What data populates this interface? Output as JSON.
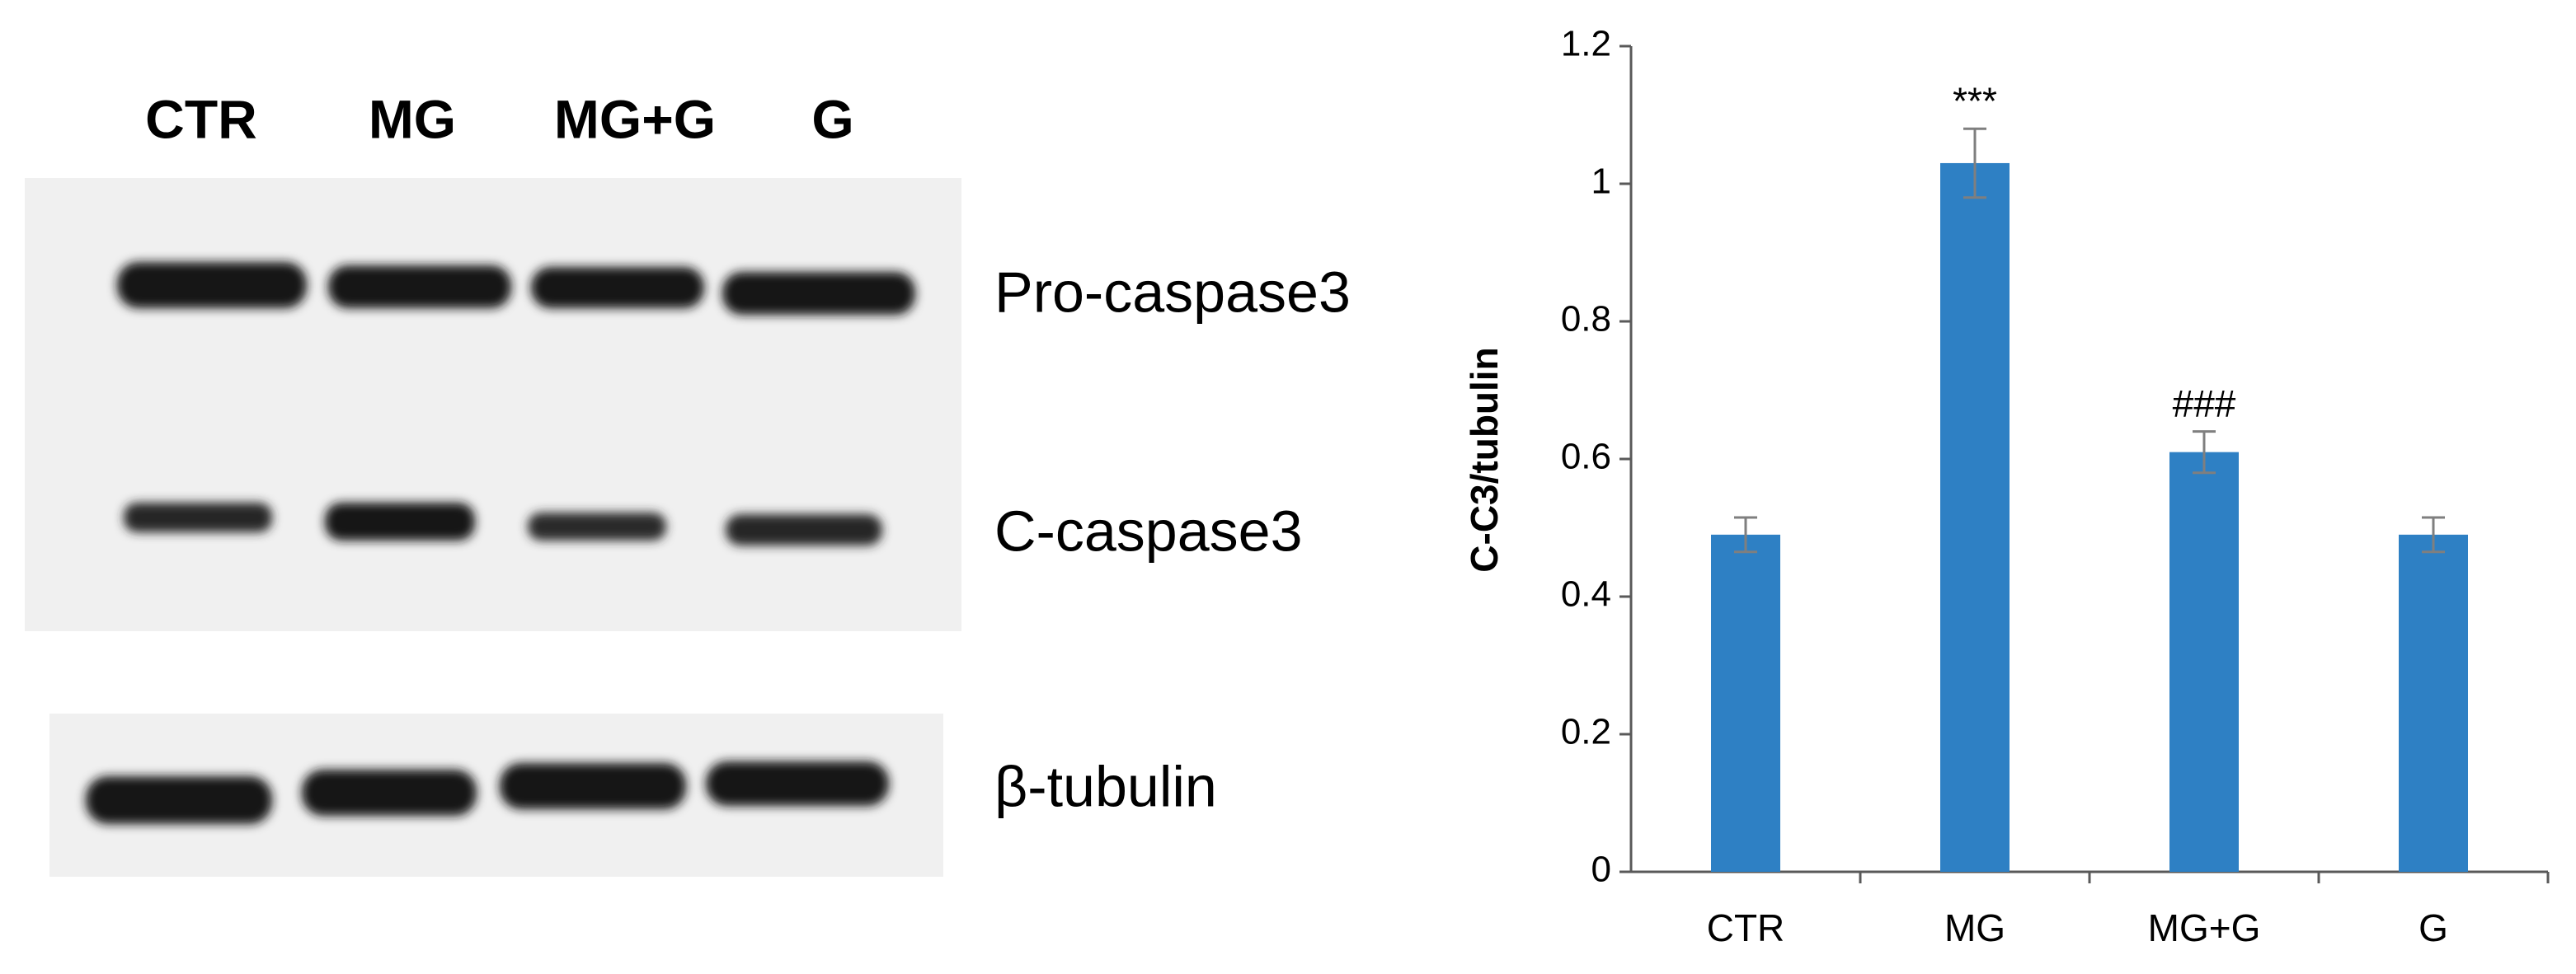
{
  "blot": {
    "lanes": [
      "CTR",
      "MG",
      "MG+G",
      "G"
    ],
    "bands": [
      "Pro-caspase3",
      "C-caspase3",
      "β-tubulin"
    ]
  },
  "chart_data": {
    "type": "bar",
    "y_label": "C-C3/tubulin",
    "categories": [
      "CTR",
      "MG",
      "MG+G",
      "G"
    ],
    "values": [
      0.49,
      1.03,
      0.61,
      0.49
    ],
    "errors": [
      0.025,
      0.05,
      0.03,
      0.025
    ],
    "annotations": [
      null,
      "***",
      "###",
      null
    ],
    "color": "#2e80c4",
    "error_color": "#7f7f7f",
    "ylim": [
      0,
      1.2
    ],
    "yticks": [
      0,
      0.2,
      0.4,
      0.6,
      0.8,
      1,
      1.2
    ]
  }
}
